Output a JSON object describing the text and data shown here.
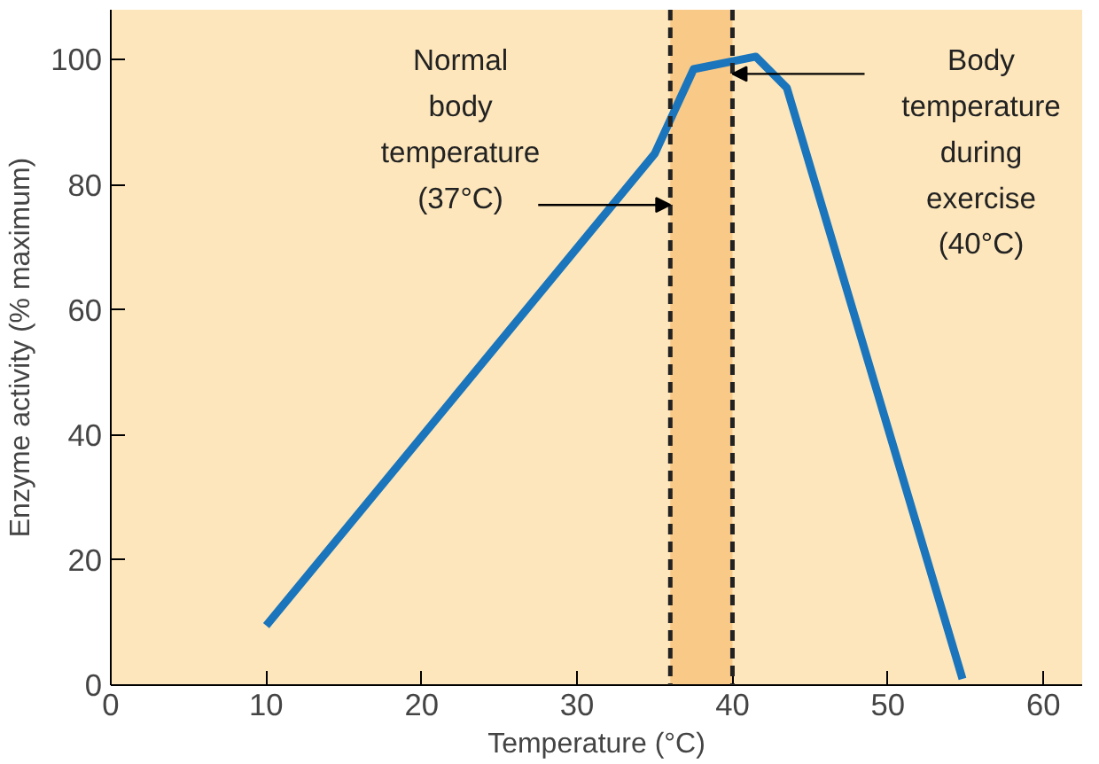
{
  "chart_data": {
    "type": "line",
    "xlabel": "Temperature (°C)",
    "ylabel": "Enzyme activity (% maximum)",
    "x": [
      10,
      35,
      37.5,
      41.5,
      43.5,
      54.8
    ],
    "series": [
      {
        "color": "#1a75bc",
        "values": [
          9.5,
          85,
          98.5,
          100.5,
          95.5,
          1
        ]
      }
    ],
    "xlim": [
      0,
      62.5
    ],
    "ylim": [
      0,
      108
    ],
    "xticks": [
      0,
      10,
      20,
      30,
      40,
      50,
      60
    ],
    "yticks": [
      0,
      20,
      40,
      60,
      80,
      100
    ],
    "grid": false,
    "marker": "none",
    "line_style": "solid",
    "bands": [
      {
        "axis": "x",
        "from": 36,
        "to": 40,
        "color": "#f8c27a"
      }
    ],
    "ref_lines": [
      {
        "axis": "x",
        "value": 36,
        "label": "Normal body temperature (37°C)",
        "line_style": "dashed",
        "color": "#222222"
      },
      {
        "axis": "x",
        "value": 40,
        "label": "Body temperature during exercise (40°C)",
        "line_style": "dashed",
        "color": "#222222"
      }
    ]
  }
}
